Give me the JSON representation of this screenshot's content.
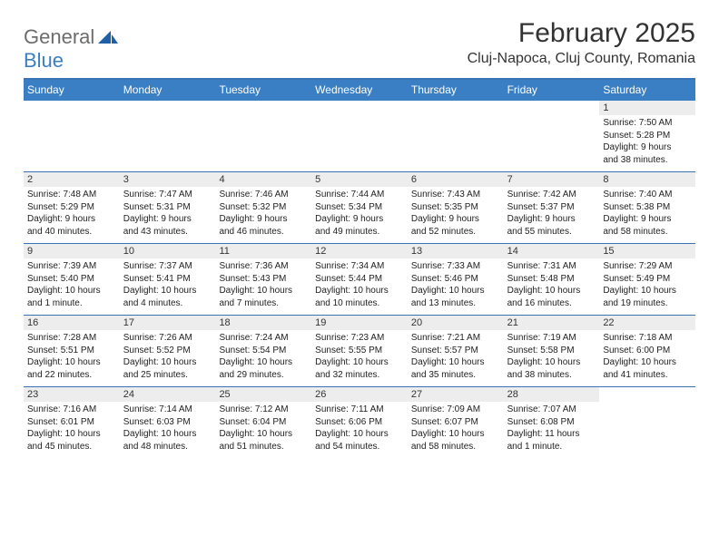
{
  "logo": {
    "word1": "General",
    "word2": "Blue"
  },
  "title": "February 2025",
  "location": "Cluj-Napoca, Cluj County, Romania",
  "colors": {
    "header_bg": "#3a7fc4",
    "header_text": "#ffffff",
    "divider": "#3973b6",
    "daynum_bg": "#ededed",
    "body_text": "#222222",
    "logo_gray": "#6c6c6c",
    "logo_blue": "#3a7fc4"
  },
  "weekdays": [
    "Sunday",
    "Monday",
    "Tuesday",
    "Wednesday",
    "Thursday",
    "Friday",
    "Saturday"
  ],
  "weeks": [
    [
      null,
      null,
      null,
      null,
      null,
      null,
      {
        "n": "1",
        "sr": "Sunrise: 7:50 AM",
        "ss": "Sunset: 5:28 PM",
        "d1": "Daylight: 9 hours",
        "d2": "and 38 minutes."
      }
    ],
    [
      {
        "n": "2",
        "sr": "Sunrise: 7:48 AM",
        "ss": "Sunset: 5:29 PM",
        "d1": "Daylight: 9 hours",
        "d2": "and 40 minutes."
      },
      {
        "n": "3",
        "sr": "Sunrise: 7:47 AM",
        "ss": "Sunset: 5:31 PM",
        "d1": "Daylight: 9 hours",
        "d2": "and 43 minutes."
      },
      {
        "n": "4",
        "sr": "Sunrise: 7:46 AM",
        "ss": "Sunset: 5:32 PM",
        "d1": "Daylight: 9 hours",
        "d2": "and 46 minutes."
      },
      {
        "n": "5",
        "sr": "Sunrise: 7:44 AM",
        "ss": "Sunset: 5:34 PM",
        "d1": "Daylight: 9 hours",
        "d2": "and 49 minutes."
      },
      {
        "n": "6",
        "sr": "Sunrise: 7:43 AM",
        "ss": "Sunset: 5:35 PM",
        "d1": "Daylight: 9 hours",
        "d2": "and 52 minutes."
      },
      {
        "n": "7",
        "sr": "Sunrise: 7:42 AM",
        "ss": "Sunset: 5:37 PM",
        "d1": "Daylight: 9 hours",
        "d2": "and 55 minutes."
      },
      {
        "n": "8",
        "sr": "Sunrise: 7:40 AM",
        "ss": "Sunset: 5:38 PM",
        "d1": "Daylight: 9 hours",
        "d2": "and 58 minutes."
      }
    ],
    [
      {
        "n": "9",
        "sr": "Sunrise: 7:39 AM",
        "ss": "Sunset: 5:40 PM",
        "d1": "Daylight: 10 hours",
        "d2": "and 1 minute."
      },
      {
        "n": "10",
        "sr": "Sunrise: 7:37 AM",
        "ss": "Sunset: 5:41 PM",
        "d1": "Daylight: 10 hours",
        "d2": "and 4 minutes."
      },
      {
        "n": "11",
        "sr": "Sunrise: 7:36 AM",
        "ss": "Sunset: 5:43 PM",
        "d1": "Daylight: 10 hours",
        "d2": "and 7 minutes."
      },
      {
        "n": "12",
        "sr": "Sunrise: 7:34 AM",
        "ss": "Sunset: 5:44 PM",
        "d1": "Daylight: 10 hours",
        "d2": "and 10 minutes."
      },
      {
        "n": "13",
        "sr": "Sunrise: 7:33 AM",
        "ss": "Sunset: 5:46 PM",
        "d1": "Daylight: 10 hours",
        "d2": "and 13 minutes."
      },
      {
        "n": "14",
        "sr": "Sunrise: 7:31 AM",
        "ss": "Sunset: 5:48 PM",
        "d1": "Daylight: 10 hours",
        "d2": "and 16 minutes."
      },
      {
        "n": "15",
        "sr": "Sunrise: 7:29 AM",
        "ss": "Sunset: 5:49 PM",
        "d1": "Daylight: 10 hours",
        "d2": "and 19 minutes."
      }
    ],
    [
      {
        "n": "16",
        "sr": "Sunrise: 7:28 AM",
        "ss": "Sunset: 5:51 PM",
        "d1": "Daylight: 10 hours",
        "d2": "and 22 minutes."
      },
      {
        "n": "17",
        "sr": "Sunrise: 7:26 AM",
        "ss": "Sunset: 5:52 PM",
        "d1": "Daylight: 10 hours",
        "d2": "and 25 minutes."
      },
      {
        "n": "18",
        "sr": "Sunrise: 7:24 AM",
        "ss": "Sunset: 5:54 PM",
        "d1": "Daylight: 10 hours",
        "d2": "and 29 minutes."
      },
      {
        "n": "19",
        "sr": "Sunrise: 7:23 AM",
        "ss": "Sunset: 5:55 PM",
        "d1": "Daylight: 10 hours",
        "d2": "and 32 minutes."
      },
      {
        "n": "20",
        "sr": "Sunrise: 7:21 AM",
        "ss": "Sunset: 5:57 PM",
        "d1": "Daylight: 10 hours",
        "d2": "and 35 minutes."
      },
      {
        "n": "21",
        "sr": "Sunrise: 7:19 AM",
        "ss": "Sunset: 5:58 PM",
        "d1": "Daylight: 10 hours",
        "d2": "and 38 minutes."
      },
      {
        "n": "22",
        "sr": "Sunrise: 7:18 AM",
        "ss": "Sunset: 6:00 PM",
        "d1": "Daylight: 10 hours",
        "d2": "and 41 minutes."
      }
    ],
    [
      {
        "n": "23",
        "sr": "Sunrise: 7:16 AM",
        "ss": "Sunset: 6:01 PM",
        "d1": "Daylight: 10 hours",
        "d2": "and 45 minutes."
      },
      {
        "n": "24",
        "sr": "Sunrise: 7:14 AM",
        "ss": "Sunset: 6:03 PM",
        "d1": "Daylight: 10 hours",
        "d2": "and 48 minutes."
      },
      {
        "n": "25",
        "sr": "Sunrise: 7:12 AM",
        "ss": "Sunset: 6:04 PM",
        "d1": "Daylight: 10 hours",
        "d2": "and 51 minutes."
      },
      {
        "n": "26",
        "sr": "Sunrise: 7:11 AM",
        "ss": "Sunset: 6:06 PM",
        "d1": "Daylight: 10 hours",
        "d2": "and 54 minutes."
      },
      {
        "n": "27",
        "sr": "Sunrise: 7:09 AM",
        "ss": "Sunset: 6:07 PM",
        "d1": "Daylight: 10 hours",
        "d2": "and 58 minutes."
      },
      {
        "n": "28",
        "sr": "Sunrise: 7:07 AM",
        "ss": "Sunset: 6:08 PM",
        "d1": "Daylight: 11 hours",
        "d2": "and 1 minute."
      },
      null
    ]
  ]
}
